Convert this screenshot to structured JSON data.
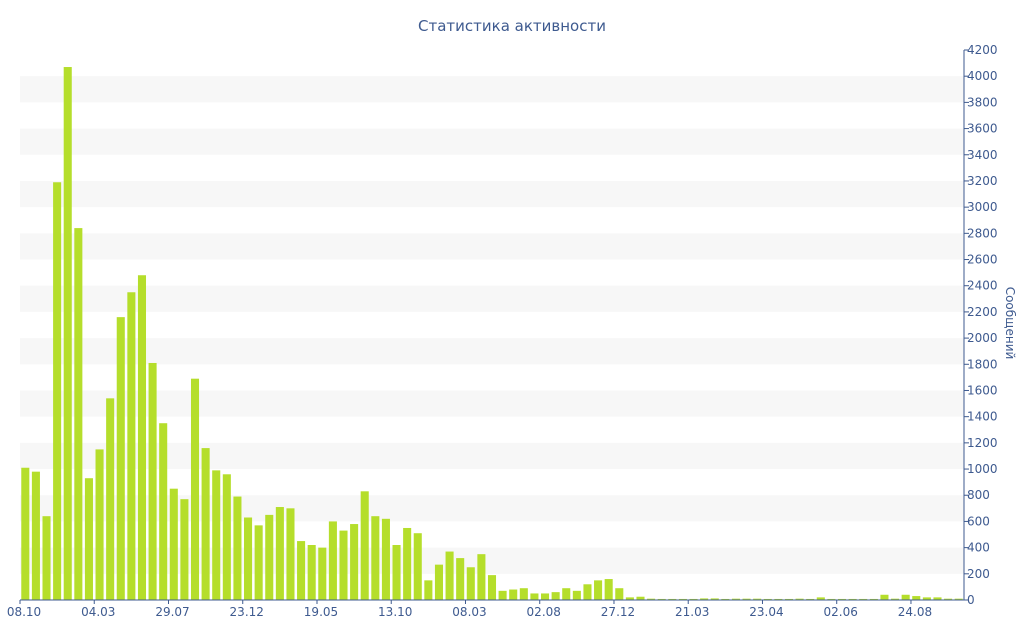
{
  "chart_data": {
    "type": "bar",
    "title": "Статистика активности",
    "ylabel": "Сообщений",
    "xlabel": "",
    "ylim": [
      0,
      4200
    ],
    "y_ticks": [
      0,
      200,
      400,
      600,
      800,
      1000,
      1200,
      1400,
      1600,
      1800,
      2000,
      2200,
      2400,
      2600,
      2800,
      3000,
      3200,
      3400,
      3600,
      3800,
      4000,
      4200
    ],
    "x_tick_labels": [
      "08.10",
      "04.03",
      "29.07",
      "23.12",
      "19.05",
      "13.10",
      "08.03",
      "02.08",
      "27.12",
      "21.03",
      "23.04",
      "02.06",
      "24.08"
    ],
    "x_tick_bar_index": [
      0,
      7,
      14,
      21,
      28,
      35,
      42,
      49,
      56,
      63,
      70,
      77,
      84
    ],
    "y_axis_position": "right",
    "grid": "horizontal alternating bands",
    "legend": "none",
    "colors": {
      "bar": "#b5de2b",
      "text": "#3e5a8f",
      "axis": "#3e5a8f",
      "band": "#f7f7f7"
    },
    "values": [
      1010,
      980,
      640,
      3190,
      4070,
      2840,
      930,
      1150,
      1540,
      2160,
      2350,
      2480,
      1810,
      1350,
      850,
      770,
      1690,
      1160,
      990,
      960,
      790,
      630,
      570,
      650,
      710,
      700,
      450,
      420,
      400,
      600,
      530,
      580,
      830,
      640,
      620,
      420,
      550,
      510,
      150,
      270,
      370,
      320,
      250,
      350,
      190,
      70,
      80,
      90,
      50,
      50,
      60,
      90,
      70,
      120,
      150,
      160,
      90,
      20,
      25,
      10,
      8,
      8,
      8,
      8,
      12,
      12,
      8,
      10,
      10,
      10,
      8,
      8,
      8,
      10,
      8,
      20,
      8,
      8,
      8,
      8,
      8,
      40,
      10,
      40,
      30,
      20,
      20,
      10,
      10
    ]
  }
}
